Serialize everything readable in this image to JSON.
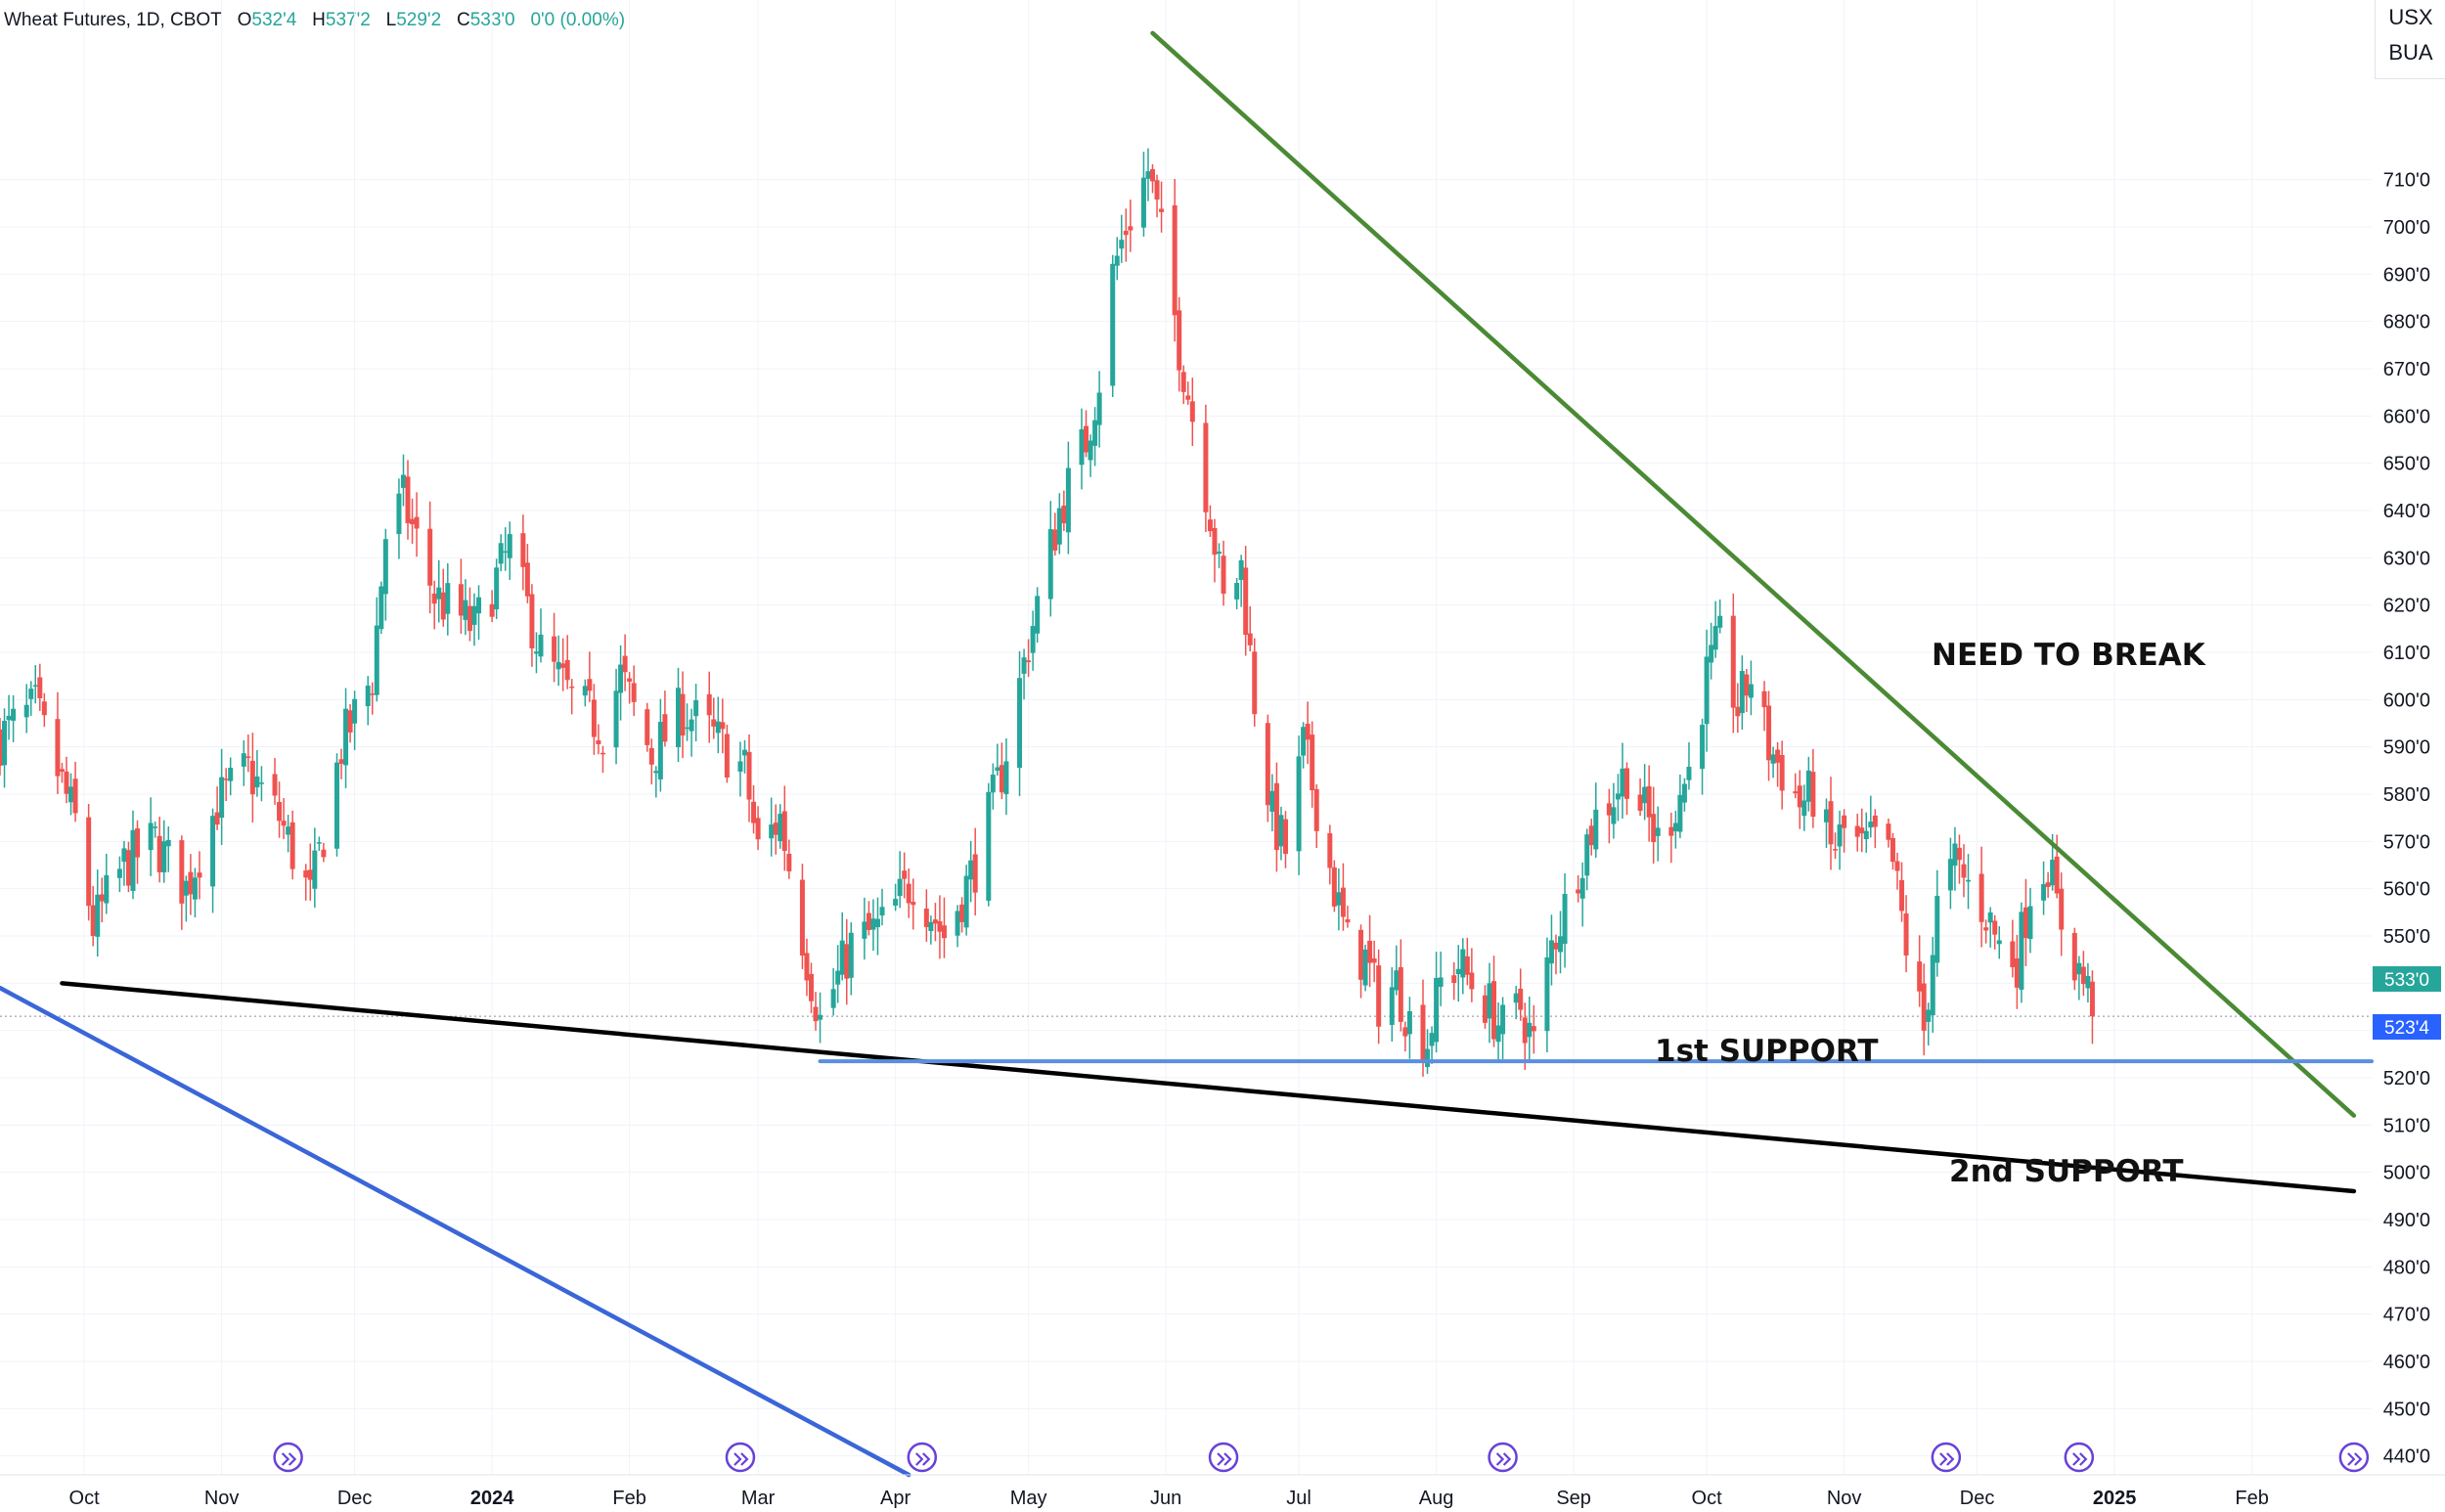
{
  "header": {
    "symbol": "Wheat Futures, 1D, CBOT",
    "o_label": "O",
    "o_value": "532'4",
    "h_label": "H",
    "h_value": "537'2",
    "l_label": "L",
    "l_value": "529'2",
    "c_label": "C",
    "c_value": "533'0",
    "change": "0'0 (0.00%)"
  },
  "units": {
    "primary": "USX",
    "secondary": "BUA"
  },
  "colors": {
    "up": "#26a69a",
    "down": "#ef5350",
    "resistance": "#4a8a34",
    "support1": "#5b8fde",
    "support2": "#000000",
    "channel": "#3a66d8",
    "grid": "#f0f3fa"
  },
  "annotations": {
    "need_to_break": "NEED TO BREAK",
    "support1": "1st SUPPORT",
    "support2": "2nd SUPPORT"
  },
  "price_tags": {
    "last": "533'0",
    "support": "523'4"
  },
  "chart_data": {
    "type": "candlestick",
    "title": "Wheat Futures, 1D, CBOT",
    "ylabel": "USX",
    "ylim": [
      436,
      748
    ],
    "x_range": [
      "2023-09-12",
      "2025-02-28"
    ],
    "x_ticks": [
      {
        "date": "2023-10-01",
        "label": "Oct"
      },
      {
        "date": "2023-11-01",
        "label": "Nov"
      },
      {
        "date": "2023-12-01",
        "label": "Dec"
      },
      {
        "date": "2024-01-01",
        "label": "2024"
      },
      {
        "date": "2024-02-01",
        "label": "Feb"
      },
      {
        "date": "2024-03-01",
        "label": "Mar"
      },
      {
        "date": "2024-04-01",
        "label": "Apr"
      },
      {
        "date": "2024-05-01",
        "label": "May"
      },
      {
        "date": "2024-06-01",
        "label": "Jun"
      },
      {
        "date": "2024-07-01",
        "label": "Jul"
      },
      {
        "date": "2024-08-01",
        "label": "Aug"
      },
      {
        "date": "2024-09-01",
        "label": "Sep"
      },
      {
        "date": "2024-10-01",
        "label": "Oct"
      },
      {
        "date": "2024-11-01",
        "label": "Nov"
      },
      {
        "date": "2024-12-01",
        "label": "Dec"
      },
      {
        "date": "2025-01-01",
        "label": "2025"
      },
      {
        "date": "2025-02-01",
        "label": "Feb"
      }
    ],
    "y_ticks": [
      {
        "v": 440,
        "label": "440'0"
      },
      {
        "v": 450,
        "label": "450'0"
      },
      {
        "v": 460,
        "label": "460'0"
      },
      {
        "v": 470,
        "label": "470'0"
      },
      {
        "v": 480,
        "label": "480'0"
      },
      {
        "v": 490,
        "label": "490'0"
      },
      {
        "v": 500,
        "label": "500'0"
      },
      {
        "v": 510,
        "label": "510'0"
      },
      {
        "v": 520,
        "label": "520'0"
      },
      {
        "v": 530,
        "label": "530'0"
      },
      {
        "v": 540,
        "label": "540'0"
      },
      {
        "v": 550,
        "label": "550'0"
      },
      {
        "v": 560,
        "label": "560'0"
      },
      {
        "v": 570,
        "label": "570'0"
      },
      {
        "v": 580,
        "label": "580'0"
      },
      {
        "v": 590,
        "label": "590'0"
      },
      {
        "v": 600,
        "label": "600'0"
      },
      {
        "v": 610,
        "label": "610'0"
      },
      {
        "v": 620,
        "label": "620'0"
      },
      {
        "v": 630,
        "label": "630'0"
      },
      {
        "v": 640,
        "label": "640'0"
      },
      {
        "v": 650,
        "label": "650'0"
      },
      {
        "v": 660,
        "label": "660'0"
      },
      {
        "v": 670,
        "label": "670'0"
      },
      {
        "v": 680,
        "label": "680'0"
      },
      {
        "v": 690,
        "label": "690'0"
      },
      {
        "v": 700,
        "label": "700'0"
      },
      {
        "v": 710,
        "label": "710'0"
      }
    ],
    "close_anchors": [
      [
        "2023-09-12",
        592
      ],
      [
        "2023-09-20",
        598
      ],
      [
        "2023-09-29",
        574
      ],
      [
        "2023-10-03",
        552
      ],
      [
        "2023-10-10",
        565
      ],
      [
        "2023-10-17",
        570
      ],
      [
        "2023-10-24",
        560
      ],
      [
        "2023-10-31",
        578
      ],
      [
        "2023-11-07",
        585
      ],
      [
        "2023-11-14",
        575
      ],
      [
        "2023-11-21",
        558
      ],
      [
        "2023-11-28",
        590
      ],
      [
        "2023-12-05",
        605
      ],
      [
        "2023-12-08",
        635
      ],
      [
        "2023-12-12",
        642
      ],
      [
        "2023-12-19",
        622
      ],
      [
        "2023-12-28",
        615
      ],
      [
        "2024-01-05",
        632
      ],
      [
        "2024-01-12",
        610
      ],
      [
        "2024-01-19",
        600
      ],
      [
        "2024-01-26",
        594
      ],
      [
        "2024-01-30",
        605
      ],
      [
        "2024-02-06",
        588
      ],
      [
        "2024-02-13",
        598
      ],
      [
        "2024-02-20",
        592
      ],
      [
        "2024-02-27",
        585
      ],
      [
        "2024-03-01",
        568
      ],
      [
        "2024-03-06",
        575
      ],
      [
        "2024-03-11",
        550
      ],
      [
        "2024-03-15",
        532
      ],
      [
        "2024-03-22",
        548
      ],
      [
        "2024-03-29",
        552
      ],
      [
        "2024-04-05",
        562
      ],
      [
        "2024-04-12",
        550
      ],
      [
        "2024-04-19",
        565
      ],
      [
        "2024-04-25",
        585
      ],
      [
        "2024-05-01",
        612
      ],
      [
        "2024-05-08",
        640
      ],
      [
        "2024-05-14",
        655
      ],
      [
        "2024-05-17",
        668
      ],
      [
        "2024-05-20",
        690
      ],
      [
        "2024-05-23",
        700
      ],
      [
        "2024-05-28",
        712
      ],
      [
        "2024-05-31",
        698
      ],
      [
        "2024-06-04",
        675
      ],
      [
        "2024-06-07",
        660
      ],
      [
        "2024-06-11",
        640
      ],
      [
        "2024-06-14",
        620
      ],
      [
        "2024-06-18",
        628
      ],
      [
        "2024-06-21",
        600
      ],
      [
        "2024-06-25",
        575
      ],
      [
        "2024-06-28",
        568
      ],
      [
        "2024-07-02",
        590
      ],
      [
        "2024-07-05",
        578
      ],
      [
        "2024-07-09",
        560
      ],
      [
        "2024-07-12",
        548
      ],
      [
        "2024-07-16",
        545
      ],
      [
        "2024-07-19",
        536
      ],
      [
        "2024-07-23",
        540
      ],
      [
        "2024-07-26",
        532
      ],
      [
        "2024-07-30",
        528
      ],
      [
        "2024-08-02",
        540
      ],
      [
        "2024-08-06",
        544
      ],
      [
        "2024-08-09",
        540
      ],
      [
        "2024-08-13",
        535
      ],
      [
        "2024-08-16",
        530
      ],
      [
        "2024-08-20",
        535
      ],
      [
        "2024-08-23",
        527
      ],
      [
        "2024-08-27",
        548
      ],
      [
        "2024-08-30",
        556
      ],
      [
        "2024-09-03",
        568
      ],
      [
        "2024-09-06",
        575
      ],
      [
        "2024-09-10",
        580
      ],
      [
        "2024-09-13",
        585
      ],
      [
        "2024-09-17",
        576
      ],
      [
        "2024-09-20",
        570
      ],
      [
        "2024-09-24",
        578
      ],
      [
        "2024-09-27",
        585
      ],
      [
        "2024-10-01",
        605
      ],
      [
        "2024-10-04",
        612
      ],
      [
        "2024-10-08",
        598
      ],
      [
        "2024-10-11",
        605
      ],
      [
        "2024-10-15",
        590
      ],
      [
        "2024-10-18",
        585
      ],
      [
        "2024-10-22",
        578
      ],
      [
        "2024-10-25",
        580
      ],
      [
        "2024-10-29",
        568
      ],
      [
        "2024-11-01",
        572
      ],
      [
        "2024-11-05",
        568
      ],
      [
        "2024-11-08",
        570
      ],
      [
        "2024-11-12",
        565
      ],
      [
        "2024-11-15",
        548
      ],
      [
        "2024-11-19",
        530
      ],
      [
        "2024-11-22",
        556
      ],
      [
        "2024-11-26",
        565
      ],
      [
        "2024-12-03",
        555
      ],
      [
        "2024-12-06",
        548
      ],
      [
        "2024-12-10",
        545
      ],
      [
        "2024-12-13",
        560
      ],
      [
        "2024-12-17",
        566
      ],
      [
        "2024-12-19",
        556
      ],
      [
        "2024-12-23",
        545
      ],
      [
        "2024-12-26",
        538
      ],
      [
        "2024-12-27",
        533
      ]
    ],
    "last_close": 533,
    "support_level": 523.5,
    "trendlines": [
      {
        "name": "resistance",
        "from": [
          "2024-05-29",
          741
        ],
        "to": [
          "2025-02-24",
          512
        ]
      },
      {
        "name": "support",
        "from": [
          "2023-09-26",
          540
        ],
        "to": [
          "2025-02-24",
          496
        ]
      },
      {
        "name": "channel",
        "from": [
          "2023-09-12",
          539
        ],
        "to": [
          "2024-04-04",
          436
        ]
      },
      {
        "name": "horizontal_support",
        "from": [
          "2024-03-15",
          523.5
        ],
        "to": [
          "2025-02-28",
          523.5
        ]
      }
    ],
    "event_markers": [
      "2023-11-16",
      "2024-02-26",
      "2024-04-07",
      "2024-06-14",
      "2024-08-16",
      "2024-11-24",
      "2024-12-24",
      "2025-02-24"
    ]
  }
}
